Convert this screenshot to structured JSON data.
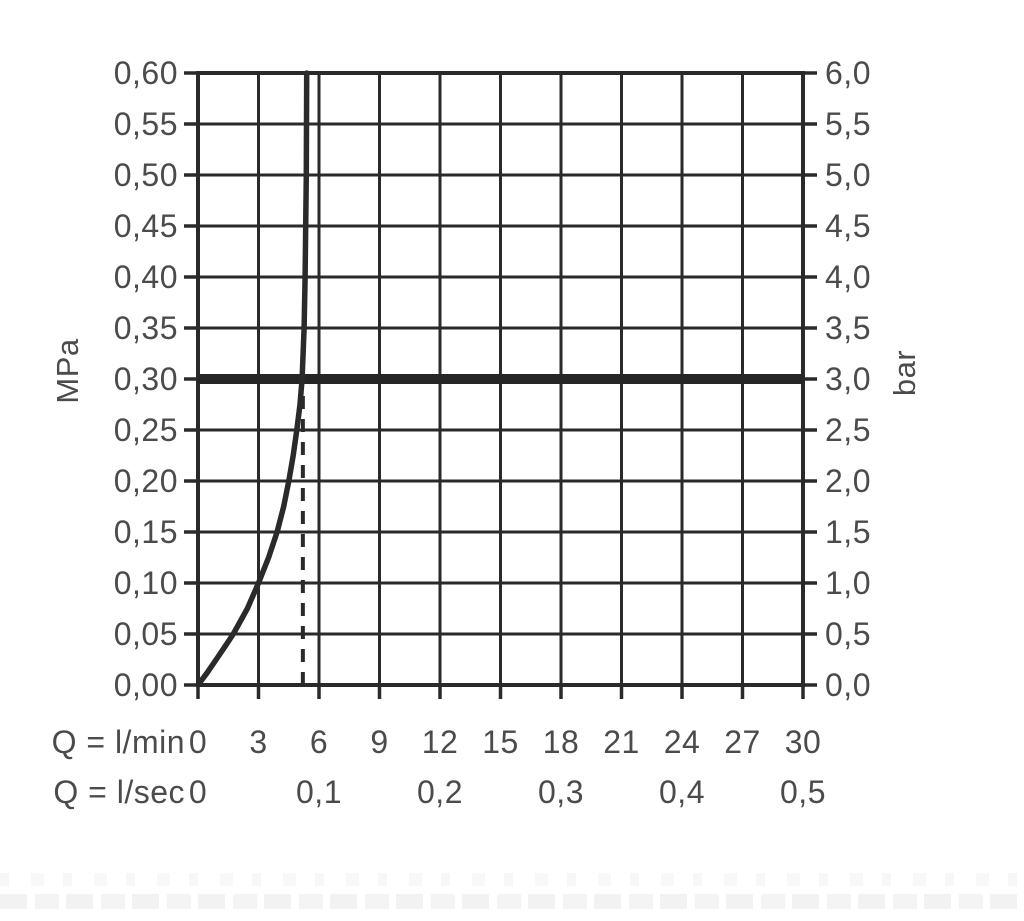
{
  "chart_data": {
    "type": "line",
    "title": "",
    "grid": true,
    "x_range_lmin": [
      0,
      30
    ],
    "y_range_mpa": [
      0,
      0.6
    ],
    "y_range_bar": [
      0,
      6
    ],
    "axis_labels": {
      "left_unit": "MPa",
      "right_unit": "bar",
      "x_row1": "Q = l/min",
      "x_row2": "Q = l/sec"
    },
    "y_ticks_mpa": [
      {
        "label": "0,00",
        "value": 0.0
      },
      {
        "label": "0,05",
        "value": 0.05
      },
      {
        "label": "0,10",
        "value": 0.1
      },
      {
        "label": "0,15",
        "value": 0.15
      },
      {
        "label": "0,20",
        "value": 0.2
      },
      {
        "label": "0,25",
        "value": 0.25
      },
      {
        "label": "0,30",
        "value": 0.3
      },
      {
        "label": "0,35",
        "value": 0.35
      },
      {
        "label": "0,40",
        "value": 0.4
      },
      {
        "label": "0,45",
        "value": 0.45
      },
      {
        "label": "0,50",
        "value": 0.5
      },
      {
        "label": "0,55",
        "value": 0.55
      },
      {
        "label": "0,60",
        "value": 0.6
      }
    ],
    "y_ticks_bar": [
      {
        "label": "0,0",
        "value": 0.0
      },
      {
        "label": "0,5",
        "value": 0.5
      },
      {
        "label": "1,0",
        "value": 1.0
      },
      {
        "label": "1,5",
        "value": 1.5
      },
      {
        "label": "2,0",
        "value": 2.0
      },
      {
        "label": "2,5",
        "value": 2.5
      },
      {
        "label": "3,0",
        "value": 3.0
      },
      {
        "label": "3,5",
        "value": 3.5
      },
      {
        "label": "4,0",
        "value": 4.0
      },
      {
        "label": "4,5",
        "value": 4.5
      },
      {
        "label": "5,0",
        "value": 5.0
      },
      {
        "label": "5,5",
        "value": 5.5
      },
      {
        "label": "6,0",
        "value": 6.0
      }
    ],
    "x_ticks_lmin": [
      {
        "label": "0",
        "value": 0
      },
      {
        "label": "3",
        "value": 3
      },
      {
        "label": "6",
        "value": 6
      },
      {
        "label": "9",
        "value": 9
      },
      {
        "label": "12",
        "value": 12
      },
      {
        "label": "15",
        "value": 15
      },
      {
        "label": "18",
        "value": 18
      },
      {
        "label": "21",
        "value": 21
      },
      {
        "label": "24",
        "value": 24
      },
      {
        "label": "27",
        "value": 27
      },
      {
        "label": "30",
        "value": 30
      }
    ],
    "x_ticks_lsec": [
      {
        "label": "0",
        "value": 0
      },
      {
        "label": "0,1",
        "value": 6
      },
      {
        "label": "0,2",
        "value": 12
      },
      {
        "label": "0,3",
        "value": 18
      },
      {
        "label": "0,4",
        "value": 24
      },
      {
        "label": "0,5",
        "value": 30
      }
    ],
    "series": [
      {
        "name": "flow-rate-curve",
        "points_lmin_mpa": [
          [
            0,
            0
          ],
          [
            0.45,
            0.012
          ],
          [
            0.9,
            0.025
          ],
          [
            1.35,
            0.038
          ],
          [
            1.75,
            0.05
          ],
          [
            2.45,
            0.075
          ],
          [
            3.0,
            0.1
          ],
          [
            3.5,
            0.125
          ],
          [
            3.92,
            0.15
          ],
          [
            4.25,
            0.175
          ],
          [
            4.5,
            0.2
          ],
          [
            4.72,
            0.225
          ],
          [
            4.9,
            0.25
          ],
          [
            5.06,
            0.275
          ],
          [
            5.16,
            0.3
          ],
          [
            5.26,
            0.35
          ],
          [
            5.31,
            0.4
          ],
          [
            5.34,
            0.45
          ],
          [
            5.37,
            0.5
          ],
          [
            5.38,
            0.55
          ],
          [
            5.39,
            0.6
          ]
        ]
      }
    ],
    "reference_line": {
      "value_mpa": 0.3,
      "value_bar": 3.0
    },
    "guide_line": {
      "style": "dashed",
      "x_lmin": 5.2,
      "y_from_mpa": 0,
      "y_to_mpa": 0.285
    },
    "colors": {
      "line": "#2a2a2a",
      "curve": "#2a2a2a",
      "reference_line": "#262626",
      "text": "#4b4b4b",
      "background": "#ffffff"
    }
  }
}
